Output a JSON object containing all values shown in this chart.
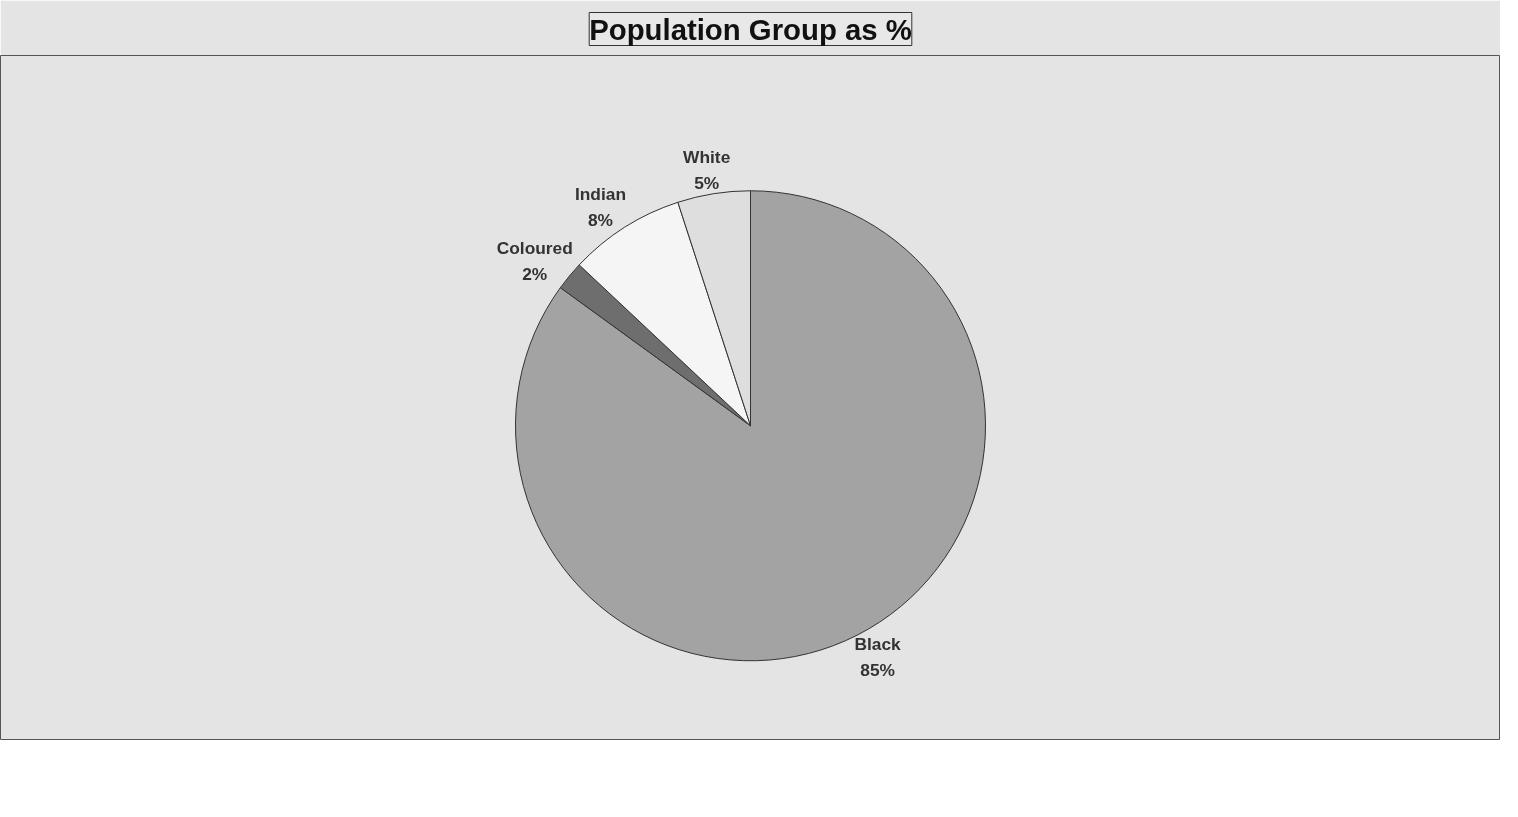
{
  "chart_data": {
    "type": "pie",
    "title": "Population Group as %",
    "categories": [
      "Black",
      "Coloured",
      "Indian",
      "White"
    ],
    "values": [
      85,
      2,
      8,
      5
    ],
    "colors": [
      "#a3a3a3",
      "#6e6e6e",
      "#f5f5f5",
      "#dedede"
    ],
    "value_labels": [
      "85%",
      "2%",
      "8%",
      "5%"
    ]
  }
}
